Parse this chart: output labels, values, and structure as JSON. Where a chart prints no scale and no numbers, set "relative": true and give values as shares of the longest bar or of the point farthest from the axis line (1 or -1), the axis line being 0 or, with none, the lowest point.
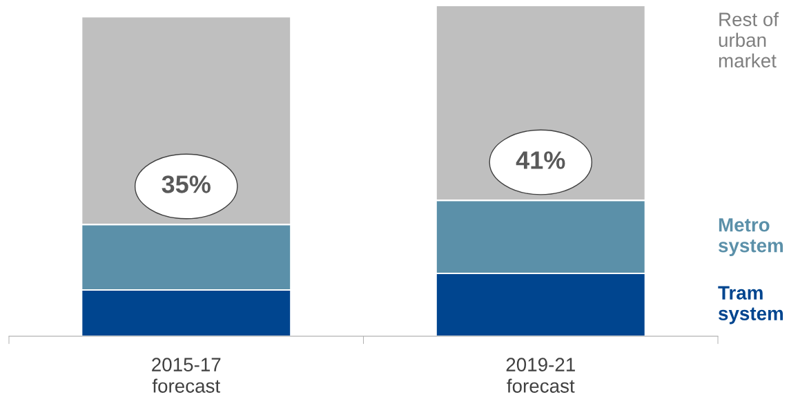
{
  "chart_data": {
    "type": "bar",
    "stacked": true,
    "relative": true,
    "categories": [
      "2015-17\nforecast",
      "2019-21\nforecast"
    ],
    "series": [
      {
        "name": "Tram\nsystem",
        "color": "#00458f",
        "values": [
          0.14,
          0.19
        ]
      },
      {
        "name": "Metro\nsystem",
        "color": "#5b90a9",
        "values": [
          0.198,
          0.221
        ]
      },
      {
        "name": "Rest of\nurban\nmarket",
        "color": "#bfbfbf",
        "values": [
          0.628,
          0.589
        ]
      }
    ],
    "annotations": [
      "35%",
      "41%"
    ],
    "legend": false,
    "grid": false
  }
}
